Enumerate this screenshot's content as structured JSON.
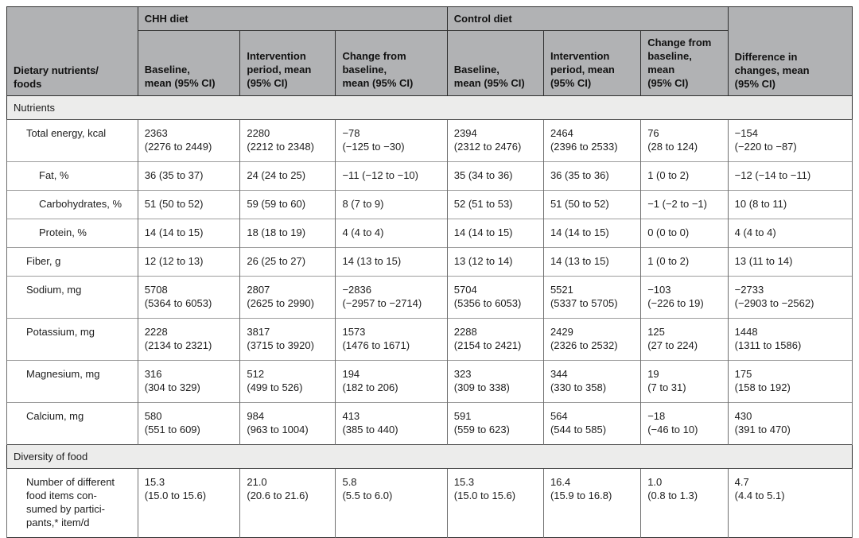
{
  "colors": {
    "header_bg": "#b1b2b4",
    "section_bg": "#ececeb",
    "body_text": "#1d1d1d"
  },
  "table": {
    "col1_header": "Dietary nutrients/\nfoods",
    "groups": [
      {
        "label": "CHH diet"
      },
      {
        "label": "Control diet"
      }
    ],
    "subheaders": [
      "Baseline,\nmean (95% CI)",
      "Intervention\nperiod, mean\n(95% CI)",
      "Change from\nbaseline,\nmean (95% CI)",
      "Baseline,\nmean (95% CI)",
      "Intervention\nperiod, mean\n(95% CI)",
      "Change from\nbaseline, mean\n(95% CI)"
    ],
    "diff_header": "Difference in\nchanges, mean\n(95% CI)",
    "sections": [
      {
        "title": "Nutrients",
        "rows": [
          {
            "label": "Total energy, kcal",
            "indent": 1,
            "cells": [
              "2363\n(2276 to 2449)",
              "2280\n(2212 to 2348)",
              "−78\n(−125 to −30)",
              "2394\n(2312 to 2476)",
              "2464\n(2396 to 2533)",
              "76\n(28 to 124)",
              "−154\n(−220 to −87)"
            ]
          },
          {
            "label": "Fat, %",
            "indent": 2,
            "cells": [
              "36 (35 to 37)",
              "24 (24 to 25)",
              "−11 (−12 to −10)",
              "35 (34 to 36)",
              "36 (35 to 36)",
              "1 (0 to 2)",
              "−12 (−14 to −11)"
            ]
          },
          {
            "label": "Carbohydrates, %",
            "indent": 2,
            "cells": [
              "51 (50 to 52)",
              "59 (59 to 60)",
              "8 (7 to 9)",
              "52 (51 to 53)",
              "51 (50 to 52)",
              "−1 (−2 to −1)",
              "10 (8 to 11)"
            ]
          },
          {
            "label": "Protein, %",
            "indent": 2,
            "cells": [
              "14 (14 to 15)",
              "18 (18 to 19)",
              "4 (4 to 4)",
              "14 (14 to 15)",
              "14 (14 to 15)",
              "0 (0 to 0)",
              "4 (4 to 4)"
            ]
          },
          {
            "label": "Fiber, g",
            "indent": 1,
            "cells": [
              "12 (12 to 13)",
              "26 (25 to 27)",
              "14 (13 to 15)",
              "13 (12 to 14)",
              "14 (13 to 15)",
              "1 (0 to 2)",
              "13 (11 to 14)"
            ]
          },
          {
            "label": "Sodium, mg",
            "indent": 1,
            "cells": [
              "5708\n(5364 to 6053)",
              "2807\n(2625 to 2990)",
              "−2836\n(−2957 to −2714)",
              "5704\n(5356 to 6053)",
              "5521\n(5337 to 5705)",
              "−103\n(−226 to 19)",
              "−2733\n(−2903 to −2562)"
            ]
          },
          {
            "label": "Potassium, mg",
            "indent": 1,
            "cells": [
              "2228\n(2134 to 2321)",
              "3817\n(3715 to 3920)",
              "1573\n(1476 to 1671)",
              "2288\n(2154 to 2421)",
              "2429\n(2326 to 2532)",
              "125\n(27 to 224)",
              "1448\n(1311 to 1586)"
            ]
          },
          {
            "label": "Magnesium, mg",
            "indent": 1,
            "cells": [
              "316\n(304 to 329)",
              "512\n(499 to 526)",
              "194\n(182 to 206)",
              "323\n(309 to 338)",
              "344\n(330 to 358)",
              "19\n(7 to 31)",
              "175\n(158 to 192)"
            ]
          },
          {
            "label": "Calcium, mg",
            "indent": 1,
            "cells": [
              "580\n(551 to 609)",
              "984\n(963 to 1004)",
              "413\n(385 to 440)",
              "591\n(559 to 623)",
              "564\n(544 to 585)",
              "−18\n(−46 to 10)",
              "430\n(391 to 470)"
            ]
          }
        ]
      },
      {
        "title": "Diversity of food",
        "rows": [
          {
            "label": "Number of different\nfood items con-\nsumed by partici-\npants,* item/d",
            "indent": 1,
            "cells": [
              "15.3\n(15.0 to 15.6)",
              "21.0\n(20.6 to 21.6)",
              "5.8\n(5.5 to 6.0)",
              "15.3\n(15.0 to 15.6)",
              "16.4\n(15.9 to 16.8)",
              "1.0\n(0.8 to 1.3)",
              "4.7\n(4.4 to 5.1)"
            ]
          }
        ]
      }
    ]
  }
}
